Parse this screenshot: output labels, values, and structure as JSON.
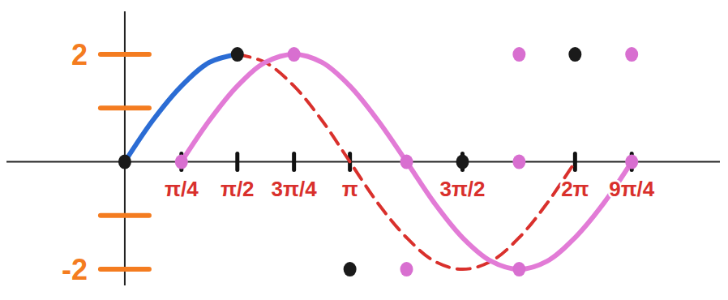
{
  "chart_data": {
    "type": "line",
    "xlim": [
      -1.65,
      8.3
    ],
    "ylim": [
      -2.3,
      2.8
    ],
    "xticks": [
      {
        "value": 0.79,
        "label": "π/4"
      },
      {
        "value": 1.57,
        "label": "π/2"
      },
      {
        "value": 2.36,
        "label": "3π/4"
      },
      {
        "value": 3.14,
        "label": "π"
      },
      {
        "value": 4.71,
        "label": "3π/2"
      },
      {
        "value": 6.28,
        "label": "2π"
      },
      {
        "value": 7.07,
        "label": "9π/4"
      }
    ],
    "yticks": [
      {
        "value": -2,
        "label": "-2"
      },
      {
        "value": -1,
        "label": null
      },
      {
        "value": 1,
        "label": null
      },
      2
    ],
    "series": [
      {
        "type": "line",
        "color": "#2b6cd4",
        "line_style": "solid",
        "x": [
          0,
          0.39,
          0.79,
          1.18,
          1.57
        ],
        "values": [
          0,
          0.77,
          1.41,
          1.85,
          2
        ]
      },
      {
        "type": "line",
        "color": "#d9302c",
        "line_style": "dashed",
        "x": [
          1.57,
          1.96,
          2.36,
          2.75,
          3.14,
          3.53,
          3.93,
          4.32,
          4.71,
          5.11,
          5.5,
          5.89,
          6.28
        ],
        "values": [
          2,
          1.85,
          1.41,
          0.77,
          0,
          -0.77,
          -1.41,
          -1.85,
          -2,
          -1.85,
          -1.41,
          -0.77,
          0
        ]
      },
      {
        "type": "line",
        "color": "#e27bd6",
        "line_style": "solid",
        "x": [
          0.79,
          1.18,
          1.57,
          1.96,
          2.36,
          2.75,
          3.14,
          3.53,
          3.93,
          4.32,
          4.71,
          5.11,
          5.5,
          5.89,
          6.28,
          6.68,
          7.07
        ],
        "values": [
          0,
          0.77,
          1.41,
          1.85,
          2,
          1.85,
          1.41,
          0.77,
          0,
          -0.77,
          -1.41,
          -1.85,
          -2,
          -1.85,
          -1.41,
          -0.77,
          0
        ]
      },
      {
        "type": "scatter",
        "color": "#1a1a1a",
        "marker": "circle",
        "x": [
          0,
          1.57,
          3.14,
          4.71,
          6.28
        ],
        "values": [
          0,
          2,
          -2,
          0,
          2
        ]
      },
      {
        "type": "scatter",
        "color": "#d86fd0",
        "marker": "circle",
        "x": [
          0.79,
          2.36,
          3.93,
          5.5,
          7.07,
          3.93,
          5.5,
          5.5,
          7.07
        ],
        "values": [
          0,
          2,
          0,
          -2,
          0,
          -2,
          0,
          2,
          2
        ]
      }
    ]
  }
}
